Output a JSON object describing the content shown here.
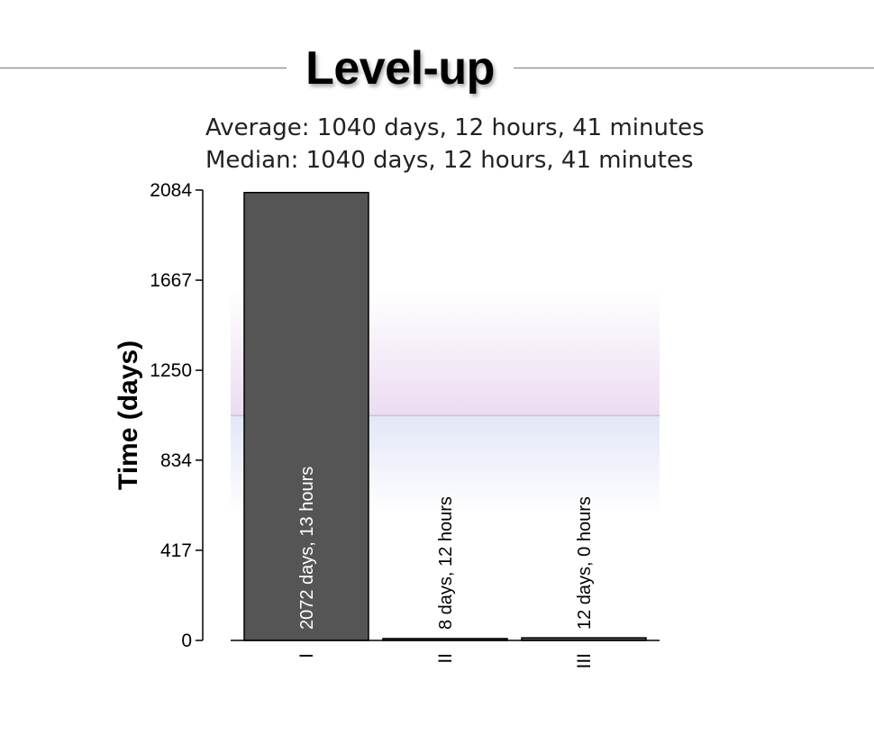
{
  "header": {
    "title": "Level-up"
  },
  "stats": {
    "average_text": "Average: 1040 days, 12 hours, 41 minutes",
    "median_text": "Median: 1040 days, 12 hours, 41 minutes"
  },
  "chart_data": {
    "type": "bar",
    "ylabel": "Time (days)",
    "xlabel": "",
    "ylim": [
      0,
      2084
    ],
    "yticks": [
      0,
      417,
      834,
      1250,
      1667,
      2084
    ],
    "categories": [
      "I",
      "II",
      "III"
    ],
    "values": [
      2072.54,
      8.5,
      12.0
    ],
    "bar_labels": [
      "2072 days, 13 hours",
      "8 days, 12 hours",
      "12 days, 0 hours"
    ],
    "reference_line": 1040.53,
    "grid": false,
    "colors": {
      "bar_fill": "#555555",
      "bar_stroke": "#000000",
      "reference_line": "#c4c4dc",
      "band_upper": "#e8d6ef",
      "band_lower": "#dde2f6"
    }
  }
}
